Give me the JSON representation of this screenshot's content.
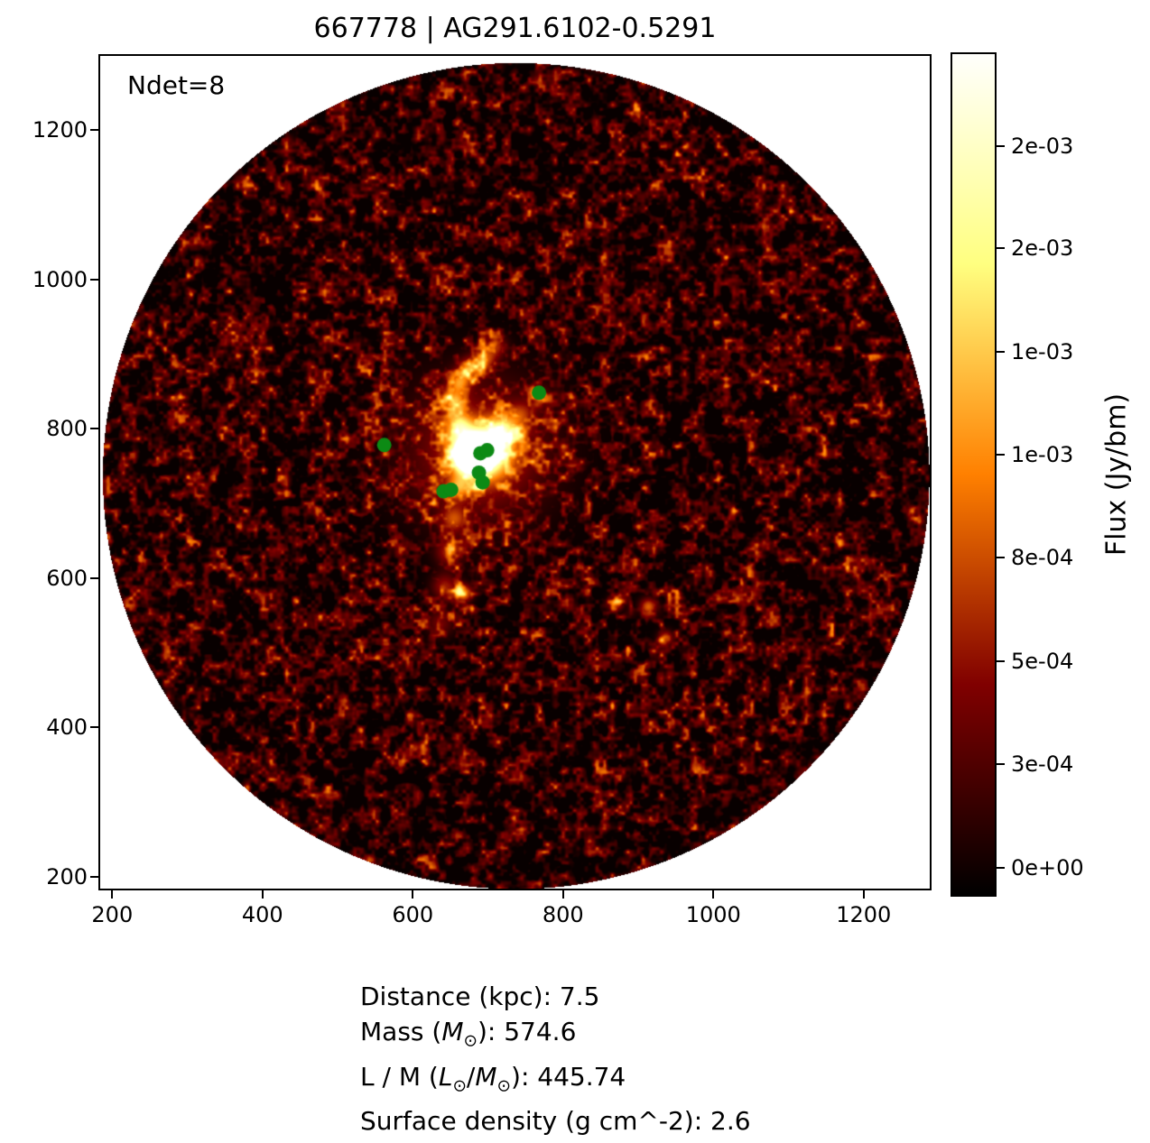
{
  "chart_data": {
    "type": "heatmap",
    "title": "667778 | AG291.6102-0.5291",
    "annotation": "Ndet=8",
    "xlabel": "",
    "ylabel": "",
    "x_range": [
      184,
      1288
    ],
    "y_range": [
      184,
      1299
    ],
    "x_ticks": [
      200,
      400,
      600,
      800,
      1000,
      1200
    ],
    "y_ticks": [
      200,
      400,
      600,
      800,
      1000,
      1200
    ],
    "grid": false,
    "colormap": "afmhot",
    "background_outside_field": "#ffffff",
    "colorbar": {
      "label": "Flux (Jy/bm)",
      "position": "right",
      "ticks": [
        {
          "label": "2e-03",
          "frac_from_bottom": 0.891
        },
        {
          "label": "2e-03",
          "frac_from_bottom": 0.769
        },
        {
          "label": "1e-03",
          "frac_from_bottom": 0.646
        },
        {
          "label": "1e-03",
          "frac_from_bottom": 0.524
        },
        {
          "label": "8e-04",
          "frac_from_bottom": 0.401
        },
        {
          "label": "5e-04",
          "frac_from_bottom": 0.278
        },
        {
          "label": "3e-04",
          "frac_from_bottom": 0.156
        },
        {
          "label": "0e+00",
          "frac_from_bottom": 0.032
        }
      ]
    },
    "field": {
      "circle_center": [
        737,
        737
      ],
      "circle_radius": 550
    },
    "detections": {
      "count": 8,
      "marker_color": "#0c8a14",
      "marker_radius_px": 8,
      "points": [
        [
          768,
          848
        ],
        [
          562,
          778
        ],
        [
          690,
          767
        ],
        [
          699,
          771
        ],
        [
          688,
          741
        ],
        [
          693,
          728
        ],
        [
          641,
          716
        ],
        [
          651,
          718
        ]
      ]
    },
    "features": [
      {
        "x": 678,
        "y": 767,
        "amp": 2.0,
        "sigma": 15
      },
      {
        "x": 696,
        "y": 770,
        "amp": 0.8,
        "sigma": 24
      },
      {
        "x": 686,
        "y": 770,
        "amp": 0.3,
        "sigma": 65
      },
      {
        "x": 723,
        "y": 800,
        "amp": 0.3,
        "sigma": 14
      },
      {
        "x": 661,
        "y": 806,
        "amp": 0.45,
        "sigma": 11
      },
      {
        "x": 655,
        "y": 836,
        "amp": 0.45,
        "sigma": 10
      },
      {
        "x": 661,
        "y": 862,
        "amp": 0.42,
        "sigma": 10
      },
      {
        "x": 675,
        "y": 881,
        "amp": 0.4,
        "sigma": 10
      },
      {
        "x": 695,
        "y": 893,
        "amp": 0.35,
        "sigma": 10
      },
      {
        "x": 710,
        "y": 911,
        "amp": 0.28,
        "sigma": 10
      },
      {
        "x": 661,
        "y": 722,
        "amp": 0.35,
        "sigma": 11
      },
      {
        "x": 654,
        "y": 679,
        "amp": 0.3,
        "sigma": 12
      },
      {
        "x": 648,
        "y": 635,
        "amp": 0.3,
        "sigma": 12
      },
      {
        "x": 642,
        "y": 589,
        "amp": 0.28,
        "sigma": 12
      },
      {
        "x": 667,
        "y": 580,
        "amp": 0.5,
        "sigma": 8
      },
      {
        "x": 636,
        "y": 540,
        "amp": 0.2,
        "sigma": 13
      },
      {
        "x": 715,
        "y": 794,
        "amp": 0.22,
        "sigma": 11
      },
      {
        "x": 743,
        "y": 820,
        "amp": 0.2,
        "sigma": 11
      },
      {
        "x": 769,
        "y": 842,
        "amp": 0.15,
        "sigma": 11
      },
      {
        "x": 870,
        "y": 567,
        "amp": 0.4,
        "sigma": 7
      },
      {
        "x": 913,
        "y": 562,
        "amp": 0.42,
        "sigma": 8
      },
      {
        "x": 936,
        "y": 520,
        "amp": 0.38,
        "sigma": 7
      }
    ]
  },
  "info_lines": [
    "Distance (kpc): 7.5",
    "Mass (M⊙): 574.6",
    "L / M (L⊙/M⊙): 445.74",
    "Surface density (g cm^-2): 2.6"
  ]
}
